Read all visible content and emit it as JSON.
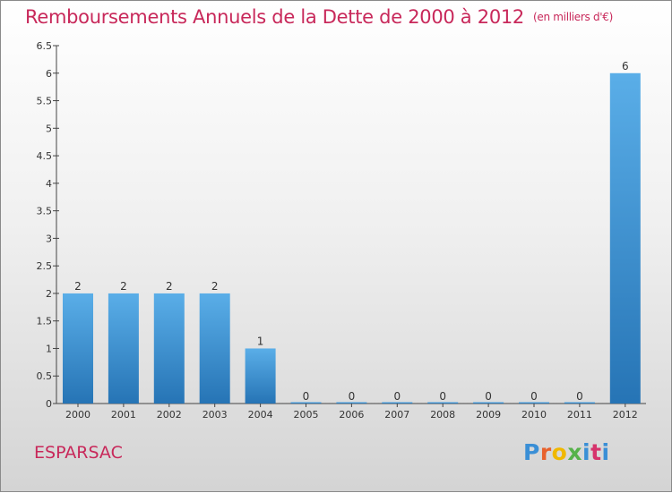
{
  "header": {
    "title": "Remboursements Annuels de la Dette de 2000 à 2012",
    "unit": "(en milliers d'€)"
  },
  "footer": {
    "commune": "ESPARSAC",
    "logo": "Proxiti",
    "logo_colors": [
      "#3a8fd6",
      "#e8612c",
      "#f0b800",
      "#56b24a",
      "#3a8fd6",
      "#d6336c",
      "#3a8fd6"
    ]
  },
  "colors": {
    "accent": "#c8285a",
    "bar_top": "#5aaee8",
    "bar_bottom": "#2674b5"
  },
  "chart_data": {
    "type": "bar",
    "categories": [
      "2000",
      "2001",
      "2002",
      "2003",
      "2004",
      "2005",
      "2006",
      "2007",
      "2008",
      "2009",
      "2010",
      "2011",
      "2012"
    ],
    "values": [
      2,
      2,
      2,
      2,
      1,
      0,
      0,
      0,
      0,
      0,
      0,
      0,
      6
    ],
    "yticks": [
      "0",
      "0.5",
      "1",
      "1.5",
      "2",
      "2.5",
      "3",
      "3.5",
      "4",
      "4.5",
      "5",
      "5.5",
      "6",
      "6.5"
    ],
    "ylim": [
      0,
      6.5
    ],
    "grid": false,
    "legend": "none"
  }
}
